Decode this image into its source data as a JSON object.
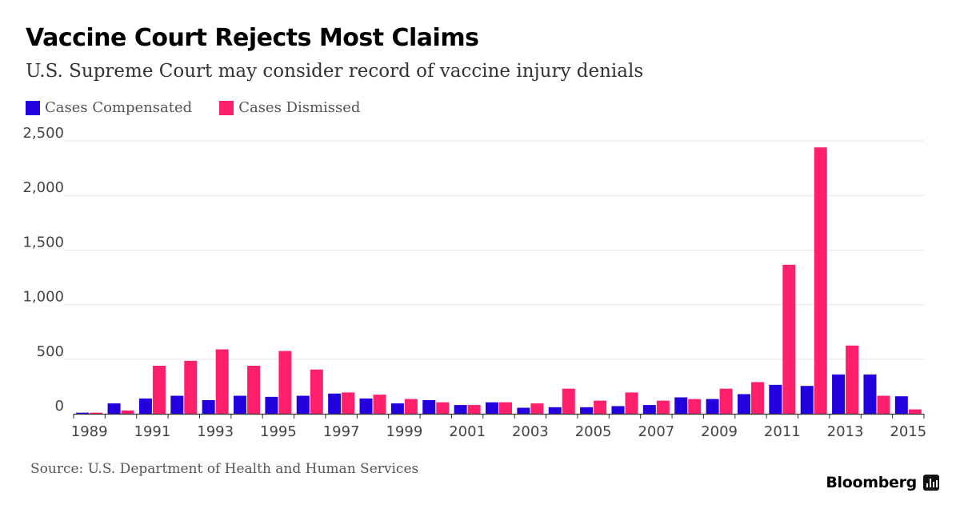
{
  "title": "Vaccine Court Rejects Most Claims",
  "subtitle": "U.S. Supreme Court may consider record of vaccine injury denials",
  "source": "Source: U.S. Department of Health and Human Services",
  "brand": "Bloomberg",
  "brand_icon": "bloomberg-chart-icon",
  "colors": {
    "compensated": "#2200dd",
    "dismissed": "#ff1f6b",
    "grid": "#e6e6e6",
    "axis": "#333333"
  },
  "legend": [
    {
      "label": "Cases Compensated",
      "color": "#2200dd"
    },
    {
      "label": "Cases Dismissed",
      "color": "#ff1f6b"
    }
  ],
  "chart_data": {
    "type": "bar",
    "title": "Vaccine Court Rejects Most Claims",
    "subtitle": "U.S. Supreme Court may consider record of vaccine injury denials",
    "xlabel": "",
    "ylabel": "",
    "ylim": [
      0,
      2500
    ],
    "grid": true,
    "legend_position": "top-left",
    "categories": [
      "1989",
      "1990",
      "1991",
      "1992",
      "1993",
      "1994",
      "1995",
      "1996",
      "1997",
      "1998",
      "1999",
      "2000",
      "2001",
      "2002",
      "2003",
      "2004",
      "2005",
      "2006",
      "2007",
      "2008",
      "2009",
      "2010",
      "2011",
      "2012",
      "2013",
      "2014",
      "2015"
    ],
    "x_tick_labels": [
      "1989",
      "1991",
      "1993",
      "1995",
      "1997",
      "1999",
      "2001",
      "2003",
      "2005",
      "2007",
      "2009",
      "2011",
      "2013",
      "2015"
    ],
    "y_ticks": [
      0,
      500,
      1000,
      1500,
      2000,
      2500
    ],
    "y_tick_labels": [
      "0",
      "500",
      "1,000",
      "1,500",
      "2,000",
      "2,500"
    ],
    "series": [
      {
        "name": "Cases Compensated",
        "values": [
          10,
          95,
          140,
          165,
          125,
          165,
          155,
          165,
          185,
          140,
          95,
          125,
          80,
          105,
          55,
          60,
          60,
          70,
          80,
          150,
          135,
          180,
          265,
          255,
          360,
          360,
          160
        ]
      },
      {
        "name": "Cases Dismissed",
        "values": [
          10,
          30,
          440,
          485,
          590,
          440,
          575,
          405,
          195,
          175,
          135,
          105,
          80,
          105,
          95,
          230,
          120,
          195,
          120,
          135,
          230,
          290,
          1365,
          2440,
          625,
          165,
          40
        ]
      }
    ]
  }
}
